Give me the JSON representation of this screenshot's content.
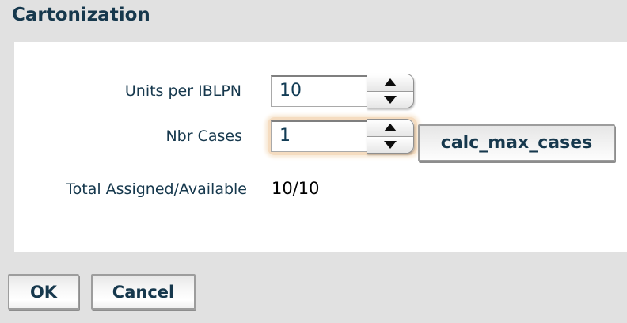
{
  "title": "Cartonization",
  "form": {
    "units_per_iblpn": {
      "label": "Units per IBLPN",
      "value": "10"
    },
    "nbr_cases": {
      "label": "Nbr Cases",
      "value": "1",
      "calc_button_label": "calc_max_cases"
    },
    "total_assigned_available": {
      "label": "Total Assigned/Available",
      "value": "10/10"
    }
  },
  "actions": {
    "ok_label": "OK",
    "cancel_label": "Cancel"
  },
  "icons": {
    "spin_up": "arrow-up-icon",
    "spin_down": "arrow-down-icon"
  },
  "colors": {
    "accent_text": "#16384d",
    "value_text": "#000000",
    "input_text": "#123c55",
    "focus_glow": "#f5dcc0",
    "page_background": "#e1e1e1",
    "panel_background": "#ffffff"
  }
}
